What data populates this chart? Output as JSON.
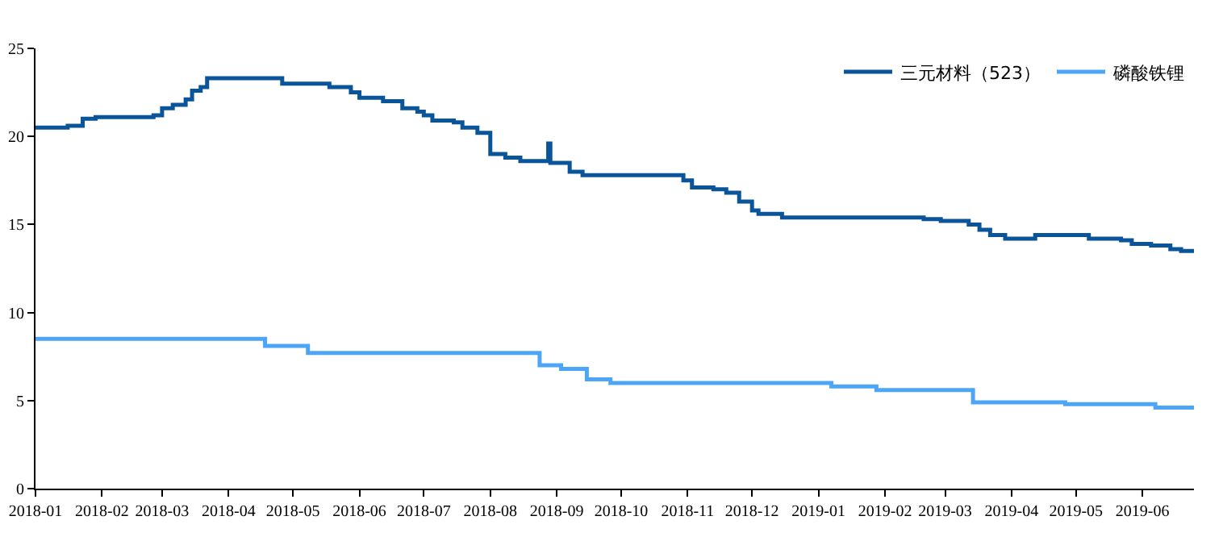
{
  "chart_data": {
    "type": "step",
    "xlim": [
      "2018-01-01",
      "2019-06-25"
    ],
    "xticks": [
      "2018-01",
      "2018-02",
      "2018-03",
      "2018-04",
      "2018-05",
      "2018-06",
      "2018-07",
      "2018-08",
      "2018-09",
      "2018-10",
      "2018-11",
      "2018-12",
      "2019-01",
      "2019-02",
      "2019-03",
      "2019-04",
      "2019-05",
      "2019-06"
    ],
    "ylim": [
      0,
      25
    ],
    "yticks": [
      0,
      5,
      10,
      15,
      20,
      25
    ],
    "grid": false,
    "legend": "top right",
    "series": [
      {
        "name": "三元材料（523）",
        "color": "#0a5599",
        "x": [
          "2018-01-01",
          "2018-01-16",
          "2018-01-23",
          "2018-01-29",
          "2018-02-25",
          "2018-03-01",
          "2018-03-06",
          "2018-03-12",
          "2018-03-15",
          "2018-03-19",
          "2018-03-22",
          "2018-04-26",
          "2018-05-18",
          "2018-05-28",
          "2018-06-01",
          "2018-06-12",
          "2018-06-21",
          "2018-06-28",
          "2018-07-01",
          "2018-07-05",
          "2018-07-15",
          "2018-07-19",
          "2018-07-26",
          "2018-08-01",
          "2018-08-08",
          "2018-08-15",
          "2018-08-28",
          "2018-08-29",
          "2018-09-07",
          "2018-09-13",
          "2018-10-30",
          "2018-11-03",
          "2018-11-13",
          "2018-11-19",
          "2018-11-25",
          "2018-12-01",
          "2018-12-04",
          "2018-12-15",
          "2019-02-19",
          "2019-02-27",
          "2019-03-12",
          "2019-03-17",
          "2019-03-22",
          "2019-03-29",
          "2019-04-12",
          "2019-05-07",
          "2019-05-22",
          "2019-05-27",
          "2019-06-05",
          "2019-06-14",
          "2019-06-19",
          "2019-06-25"
        ],
        "values": [
          20.5,
          20.6,
          21.0,
          21.1,
          21.2,
          21.6,
          21.8,
          22.1,
          22.6,
          22.8,
          23.3,
          23.0,
          22.8,
          22.5,
          22.2,
          22.0,
          21.6,
          21.4,
          21.2,
          20.9,
          20.8,
          20.5,
          20.2,
          19.0,
          18.8,
          18.6,
          19.6,
          18.5,
          18.0,
          17.8,
          17.5,
          17.1,
          17.0,
          16.8,
          16.3,
          15.8,
          15.6,
          15.4,
          15.3,
          15.2,
          15.0,
          14.7,
          14.4,
          14.2,
          14.4,
          14.2,
          14.1,
          13.9,
          13.8,
          13.6,
          13.5,
          13.5
        ]
      },
      {
        "name": "磷酸铁锂",
        "color": "#4da6f5",
        "x": [
          "2018-01-01",
          "2018-04-18",
          "2018-05-08",
          "2018-08-24",
          "2018-09-03",
          "2018-09-15",
          "2018-09-26",
          "2019-01-07",
          "2019-01-28",
          "2019-03-14",
          "2019-04-26",
          "2019-06-07",
          "2019-06-25"
        ],
        "values": [
          8.5,
          8.1,
          7.7,
          7.0,
          6.8,
          6.2,
          6.0,
          5.8,
          5.6,
          4.9,
          4.8,
          4.6,
          4.6
        ]
      }
    ]
  }
}
